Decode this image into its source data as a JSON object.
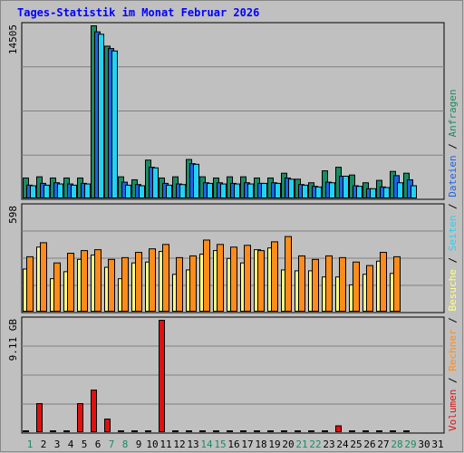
{
  "title": "Tages-Statistik im Monat Februar 2026",
  "colors": {
    "background": "#c0c0c0",
    "title": "#0000ff",
    "grid": "#808080",
    "anfragen": "#1b8b61",
    "dateien": "#1c64e8",
    "seiten": "#21d3f3",
    "besuche": "#ffff80",
    "rechner": "#ff8c1a",
    "volumen": "#e01010",
    "weekend_label": "#1b8b61",
    "weekday_label": "#000000"
  },
  "legend": {
    "anfragen": "Anfragen",
    "dateien": "Dateien",
    "seiten": "Seiten",
    "besuche": "Besuche",
    "rechner": "Rechner",
    "volumen": "Volumen",
    "sep": "/"
  },
  "chart_data": {
    "type": "bar",
    "title": "Tages-Statistik im Monat Februar 2026",
    "categories": [
      "1",
      "2",
      "3",
      "4",
      "5",
      "6",
      "7",
      "8",
      "9",
      "10",
      "11",
      "12",
      "13",
      "14",
      "15",
      "16",
      "17",
      "18",
      "19",
      "20",
      "21",
      "22",
      "23",
      "24",
      "25",
      "26",
      "27",
      "28",
      "29",
      "30",
      "31"
    ],
    "weekend_days": [
      "1",
      "7",
      "8",
      "14",
      "15",
      "21",
      "22",
      "28",
      "29"
    ],
    "panels": [
      {
        "id": "requests",
        "ymax_label": "14505",
        "ymax": 14505,
        "series": [
          {
            "name": "Anfragen",
            "color": "#1b8b61",
            "values": [
              1750,
              1850,
              1750,
              1750,
              1750,
              14505,
              12800,
              1850,
              1600,
              3250,
              1750,
              1850,
              3300,
              1850,
              1750,
              1850,
              1850,
              1750,
              1750,
              2150,
              1650,
              1350,
              2350,
              2650,
              2000,
              1350,
              1550,
              2300,
              2150,
              0,
              0
            ]
          },
          {
            "name": "Dateien",
            "color": "#1c64e8",
            "values": [
              1150,
              1300,
              1350,
              1250,
              1300,
              14000,
              12600,
              1400,
              1200,
              2650,
              1300,
              1250,
              2950,
              1350,
              1350,
              1300,
              1350,
              1300,
              1350,
              1750,
              1200,
              1050,
              1400,
              1900,
              1100,
              850,
              1000,
              1950,
              1600,
              0,
              0
            ]
          },
          {
            "name": "Seiten",
            "color": "#21d3f3",
            "values": [
              1100,
              1150,
              1250,
              1150,
              1250,
              13800,
              12400,
              1150,
              1100,
              2600,
              1150,
              1200,
              2900,
              1300,
              1250,
              1250,
              1250,
              1300,
              1300,
              1650,
              1150,
              1000,
              1350,
              1900,
              1050,
              850,
              950,
              1350,
              1100,
              0,
              0
            ]
          }
        ]
      },
      {
        "id": "visitors",
        "ymax_label": "598",
        "ymax": 598,
        "series": [
          {
            "name": "Besuche",
            "color": "#ffff80",
            "values": [
              245,
              370,
              190,
              230,
              300,
              325,
              255,
              190,
              280,
              285,
              345,
              215,
              240,
              330,
              350,
              305,
              280,
              355,
              365,
              240,
              235,
              235,
              200,
              200,
              155,
              215,
              290,
              220,
              0,
              0,
              0
            ]
          },
          {
            "name": "Rechner",
            "color": "#ff8c1a",
            "values": [
              315,
              395,
              280,
              335,
              350,
              355,
              300,
              310,
              340,
              360,
              385,
              310,
              320,
              410,
              385,
              370,
              380,
              350,
              400,
              430,
              320,
              300,
              320,
              310,
              285,
              265,
              340,
              315,
              0,
              0,
              0
            ]
          }
        ]
      },
      {
        "id": "volume",
        "ymax_label": "9.11 GB",
        "ymax": 9.11,
        "unit": "GB",
        "series": [
          {
            "name": "Volumen",
            "color": "#e01010",
            "values": [
              0.1,
              2.35,
              0.1,
              0.1,
              2.35,
              3.45,
              1.1,
              0.1,
              0.1,
              0.1,
              9.11,
              0.1,
              0.1,
              0.1,
              0.1,
              0.1,
              0.1,
              0.1,
              0.1,
              0.1,
              0.1,
              0.1,
              0.1,
              0.55,
              0.1,
              0.1,
              0.1,
              0.1,
              0.1,
              0,
              0
            ]
          }
        ]
      }
    ]
  }
}
